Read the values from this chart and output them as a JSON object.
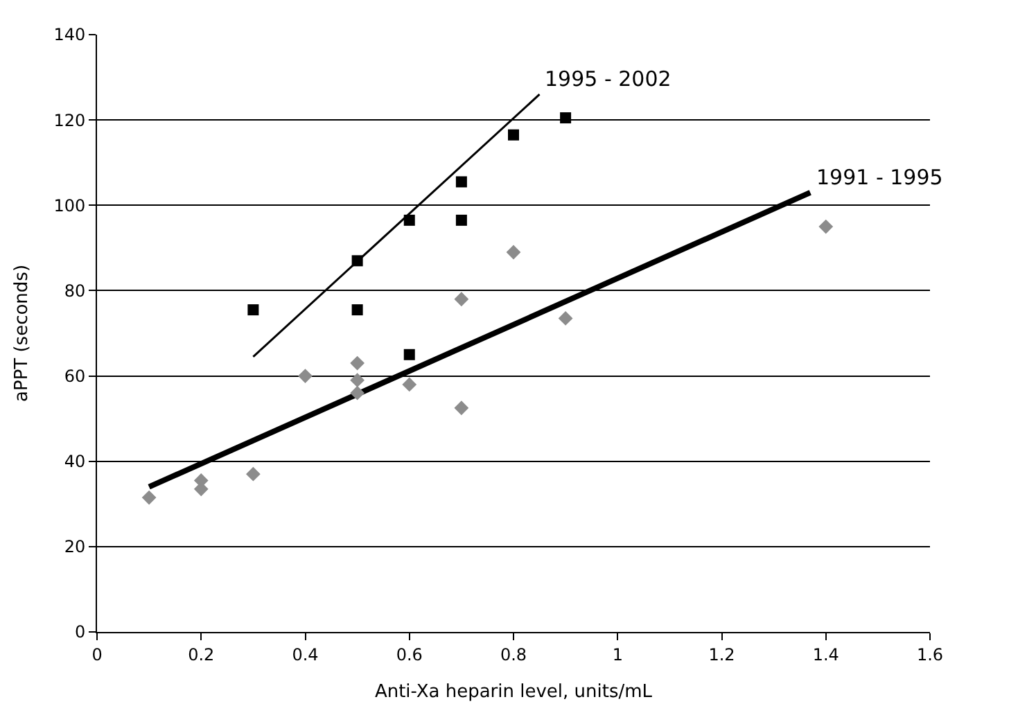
{
  "chart_data": {
    "type": "scatter",
    "xlabel": "Anti-Xa heparin level, units/mL",
    "ylabel": "aPPT (seconds)",
    "xlim": [
      0,
      1.6
    ],
    "xticks": [
      0,
      0.2,
      0.4,
      0.6,
      0.8,
      1,
      1.2,
      1.4,
      1.6
    ],
    "ylim": [
      0,
      140
    ],
    "yticks": [
      0,
      20,
      40,
      60,
      80,
      100,
      120,
      140
    ],
    "grid": "y",
    "series": [
      {
        "marker": "square",
        "color": "#000000",
        "x": [
          0.3,
          0.5,
          0.5,
          0.6,
          0.6,
          0.7,
          0.7,
          0.8,
          0.9
        ],
        "values": [
          75.5,
          87,
          75.5,
          96.5,
          65,
          105.5,
          96.5,
          116.5,
          120.5
        ]
      },
      {
        "marker": "diamond",
        "color": "#8c8c8c",
        "x": [
          0.1,
          0.2,
          0.2,
          0.3,
          0.4,
          0.5,
          0.5,
          0.5,
          0.6,
          0.7,
          0.7,
          0.8,
          0.9,
          1.4
        ],
        "values": [
          31.5,
          35.5,
          33.5,
          37,
          60,
          63,
          59,
          56,
          58,
          78,
          52.5,
          89,
          73.5,
          95
        ]
      },
      {
        "type": "line",
        "name": "1995 - 2002",
        "marker": "none",
        "color": "#000000",
        "x": [
          0.3,
          0.85
        ],
        "values": [
          64.5,
          126
        ]
      },
      {
        "type": "line",
        "name": "1991 - 1995",
        "marker": "none",
        "color": "#000000",
        "x": [
          0.1,
          1.37
        ],
        "values": [
          34,
          103
        ]
      }
    ]
  }
}
